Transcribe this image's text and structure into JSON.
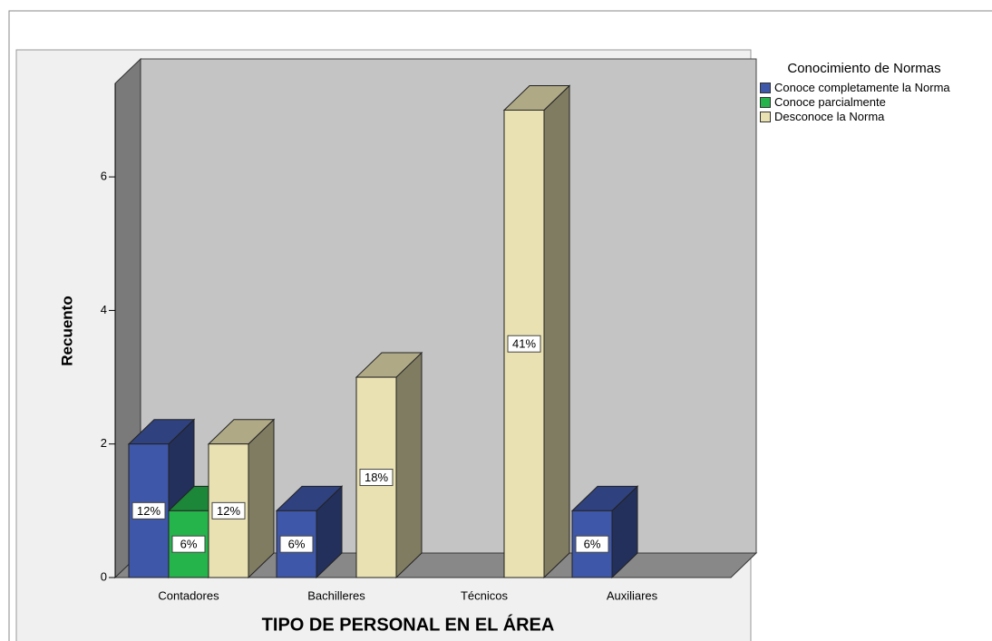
{
  "chart_data": {
    "type": "bar",
    "x_label": "TIPO DE PERSONAL EN EL ÁREA",
    "y_label": "Recuento",
    "legend_title": "Conocimiento de Normas",
    "legend": "right",
    "categories": [
      "Contadores",
      "Bachilleres",
      "Técnicos",
      "Auxiliares"
    ],
    "series": [
      {
        "name": "Conoce completamente la Norma",
        "color": "#3f57a8",
        "values": [
          2,
          1,
          null,
          1
        ],
        "value_labels": [
          "12%",
          "6%",
          null,
          "6%"
        ]
      },
      {
        "name": "Conoce parcialmente",
        "color": "#25b34c",
        "values": [
          1,
          null,
          null,
          null
        ],
        "value_labels": [
          "6%",
          null,
          null,
          null
        ]
      },
      {
        "name": "Desconoce la Norma",
        "color": "#e9e1b2",
        "values": [
          2,
          3,
          7,
          null
        ],
        "value_labels": [
          "12%",
          "18%",
          "41%",
          null
        ]
      }
    ],
    "ylim": [
      0,
      7.4
    ],
    "yticks": [
      0,
      2,
      4,
      6
    ]
  }
}
